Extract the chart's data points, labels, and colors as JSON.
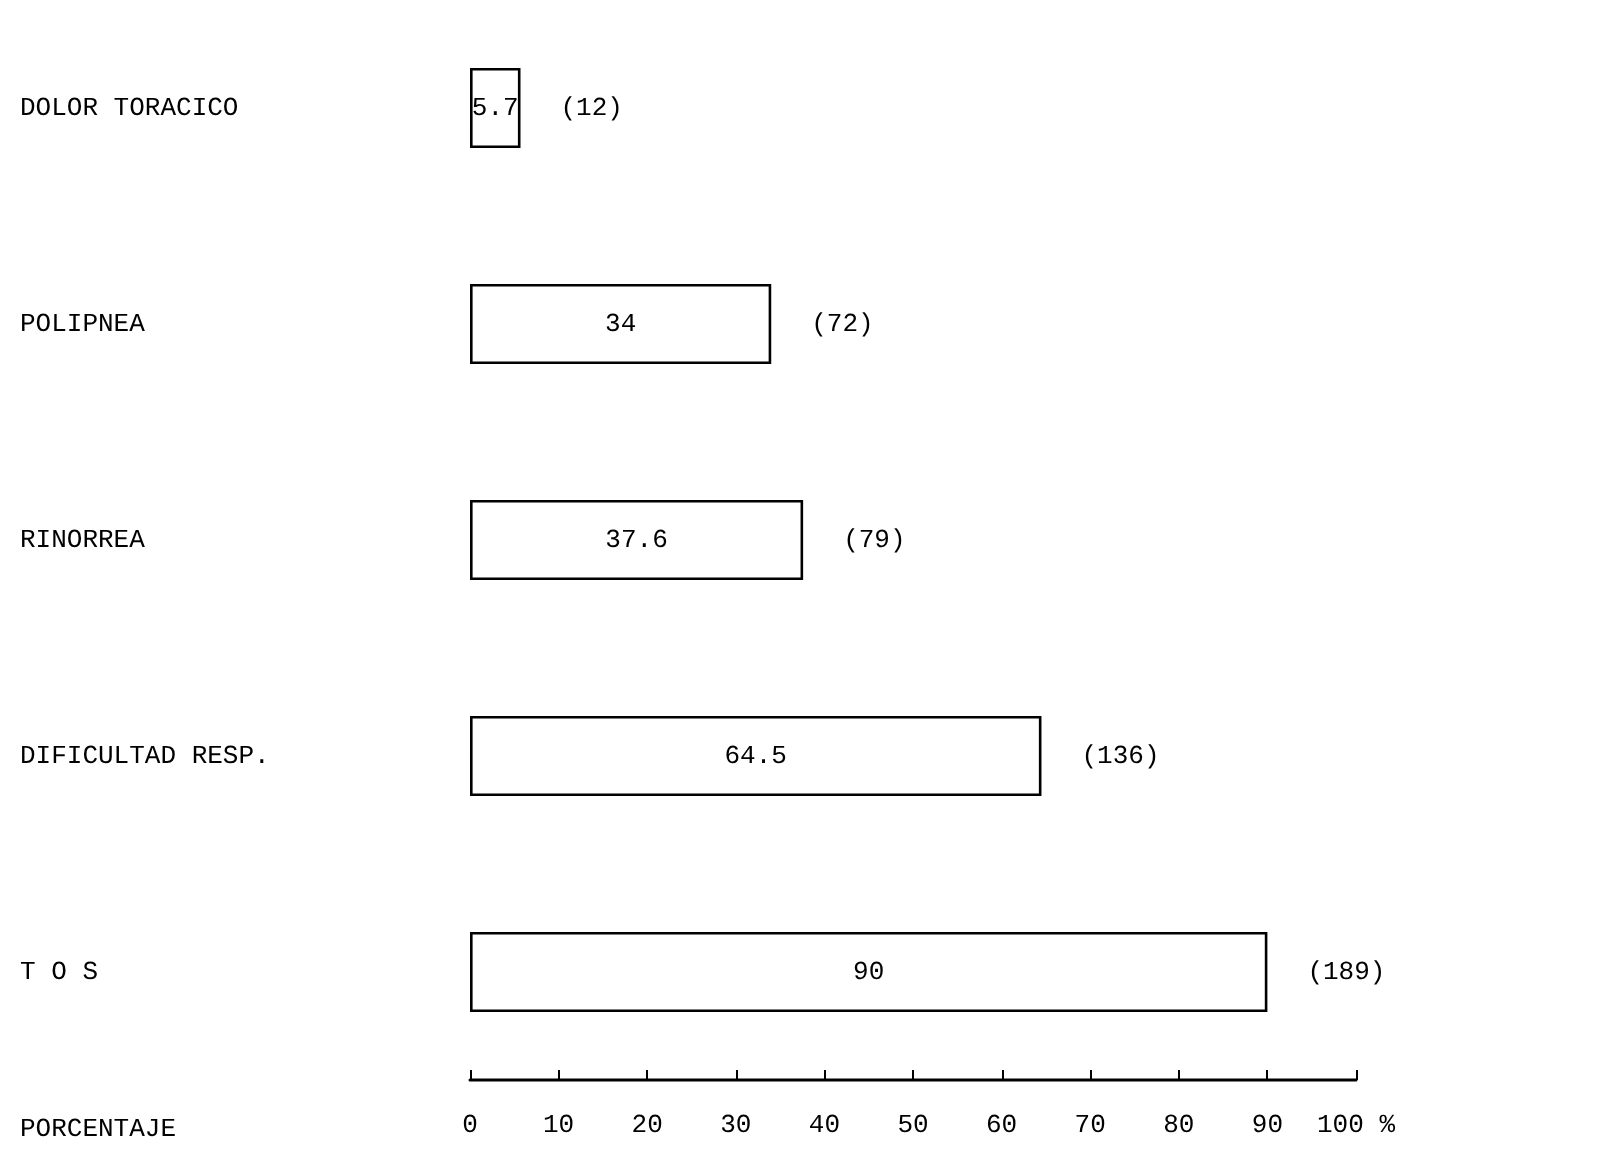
{
  "chart_data": {
    "type": "bar",
    "orientation": "horizontal",
    "xlabel": "PORCENTAJE",
    "categories": [
      "DOLOR TORACICO",
      "POLIPNEA",
      "RINORREA",
      "DIFICULTAD RESP.",
      "T O S"
    ],
    "values": [
      5.7,
      34,
      37.6,
      64.5,
      90
    ],
    "color": "#ffffff",
    "data_labels": true,
    "xlim": [
      0,
      100
    ],
    "xticks": [
      0,
      10,
      20,
      30,
      40,
      50,
      60,
      70,
      80,
      90,
      {
        "value": 100,
        "label": "100 %"
      }
    ],
    "grid": false,
    "annotations": [
      {
        "text": "(12)",
        "x": 5.7,
        "y": "DOLOR TORACICO"
      },
      {
        "text": "(72)",
        "x": 34,
        "y": "POLIPNEA"
      },
      {
        "text": "(79)",
        "x": 37.6,
        "y": "RINORREA"
      },
      {
        "text": "(136)",
        "x": 64.5,
        "y": "DIFICULTAD RESP."
      },
      {
        "text": "(189)",
        "x": 90,
        "y": "T O S"
      }
    ]
  }
}
